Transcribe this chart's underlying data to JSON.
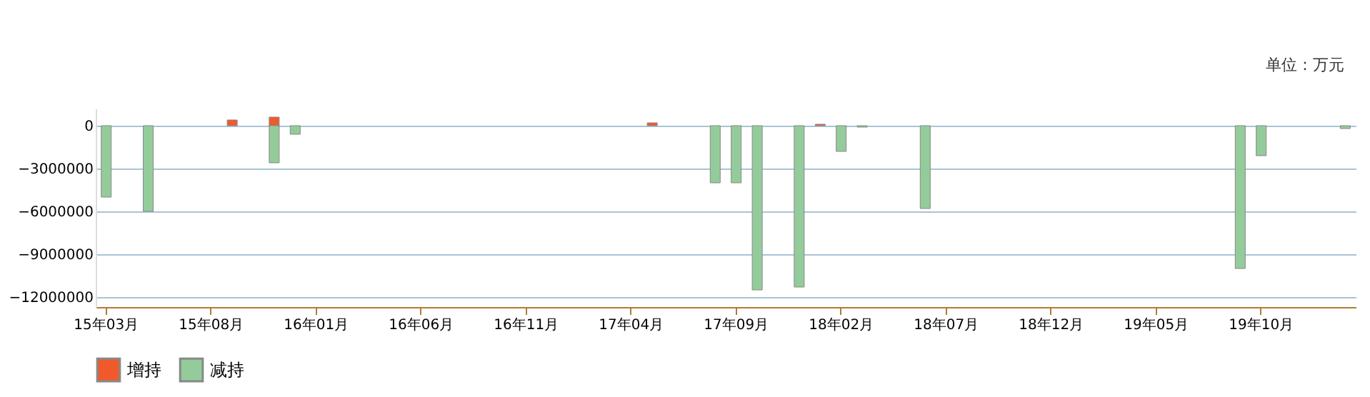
{
  "chart_data": {
    "type": "bar",
    "annotations": [
      "单位：万元"
    ],
    "categories": [
      "15年03月",
      null,
      null,
      null,
      null,
      "15年08月",
      null,
      null,
      null,
      null,
      "16年01月",
      null,
      null,
      null,
      null,
      "16年06月",
      null,
      null,
      null,
      null,
      "16年11月",
      null,
      null,
      null,
      null,
      "17年04月",
      null,
      null,
      null,
      null,
      "17年09月",
      null,
      null,
      null,
      null,
      "18年02月",
      null,
      null,
      null,
      null,
      "18年07月",
      null,
      null,
      null,
      null,
      "18年12月",
      null,
      null,
      null,
      null,
      "19年05月",
      null,
      null,
      null,
      null,
      "19年10月",
      null,
      null,
      null,
      null
    ],
    "series": [
      {
        "name": "增持",
        "color": "#f05a2a",
        "values": [
          null,
          null,
          null,
          null,
          null,
          null,
          400000,
          null,
          600000,
          null,
          null,
          null,
          null,
          null,
          null,
          null,
          null,
          null,
          null,
          null,
          null,
          null,
          null,
          null,
          null,
          null,
          200000,
          null,
          null,
          null,
          null,
          null,
          null,
          null,
          100000,
          null,
          null,
          null,
          null,
          null,
          null,
          null,
          null,
          null,
          null,
          null,
          null,
          null,
          null,
          null,
          null,
          null,
          null,
          null,
          null,
          null,
          null,
          null,
          null,
          null
        ]
      },
      {
        "name": "减持",
        "color": "#93cc9a",
        "values": [
          -5000000,
          null,
          -6000000,
          null,
          null,
          null,
          null,
          null,
          -2600000,
          -600000,
          null,
          null,
          null,
          null,
          null,
          null,
          null,
          null,
          null,
          null,
          null,
          null,
          null,
          null,
          null,
          null,
          null,
          null,
          null,
          -4000000,
          -4000000,
          -11500000,
          null,
          -11300000,
          null,
          -1800000,
          -100000,
          null,
          null,
          -5800000,
          null,
          null,
          null,
          null,
          null,
          null,
          null,
          null,
          null,
          null,
          null,
          null,
          null,
          null,
          -10000000,
          -2100000,
          null,
          null,
          null,
          -200000
        ]
      }
    ],
    "ylim": [
      -12700000,
      1200000
    ],
    "yticks": [
      0,
      -3000000,
      -6000000,
      -9000000,
      -12000000
    ],
    "grid": "y",
    "legend": "bottom"
  }
}
